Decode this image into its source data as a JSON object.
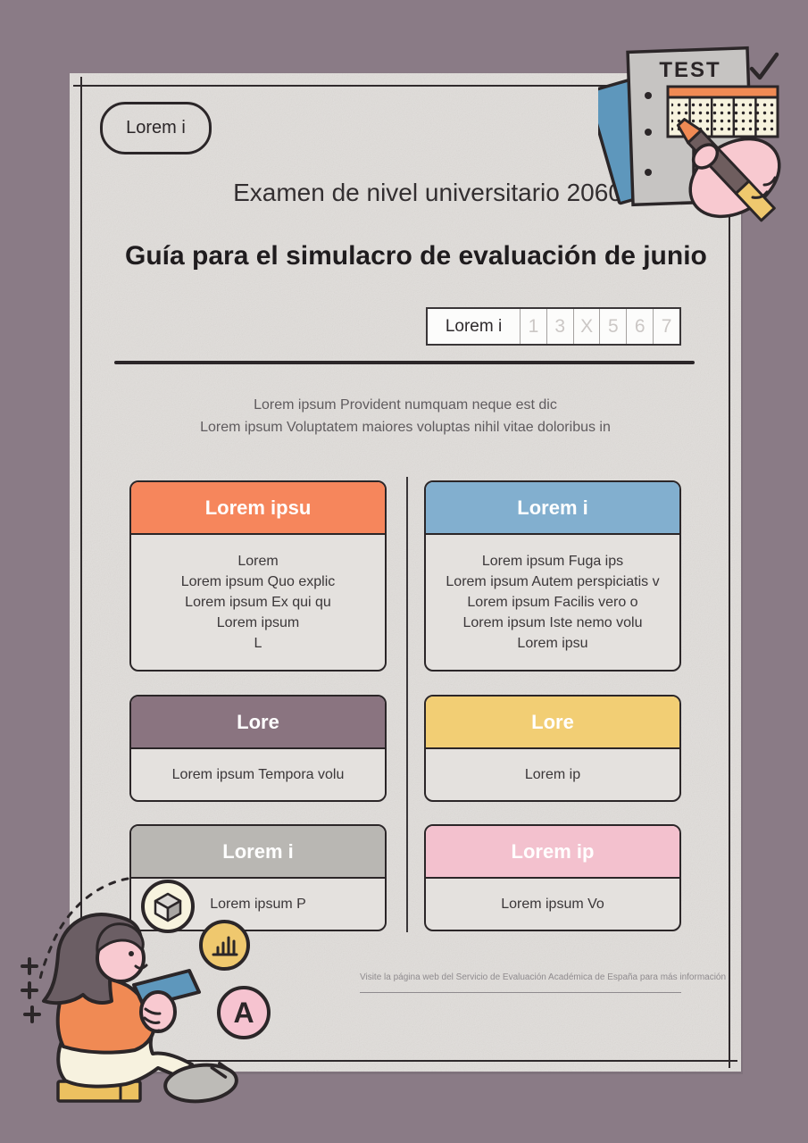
{
  "page": {
    "badge_label": "Lorem i",
    "subtitle": "Examen de nivel universitario 2060",
    "title": "Guía para el simulacro de evaluación de junio",
    "answer_row": {
      "label": "Lorem i",
      "cells": [
        "1",
        "3",
        "X",
        "5",
        "6",
        "7"
      ]
    },
    "intro_lines": [
      "Lorem ipsum Provident numquam neque est dic",
      "Lorem ipsum Voluptatem maiores voluptas nihil vitae doloribus in"
    ],
    "footer_note": "Visite la página web del Servicio de Evaluación Académica de España para más información"
  },
  "cards": [
    {
      "title": "Lorem ipsu",
      "color": "#f6865c",
      "lines": [
        "Lorem",
        "Lorem ipsum Quo explic",
        "Lorem ipsum Ex qui qu",
        "Lorem ipsum",
        "L"
      ]
    },
    {
      "title": "Lorem i",
      "color": "#82afcf",
      "lines": [
        "Lorem ipsum Fuga ips",
        "Lorem ipsum Autem perspiciatis v",
        "Lorem ipsum Facilis vero o",
        "Lorem ipsum Iste nemo volu",
        "Lorem ipsu"
      ]
    },
    {
      "title": "Lore",
      "color": "#8a7480",
      "lines": [
        "Lorem ipsum Tempora volu"
      ]
    },
    {
      "title": "Lore",
      "color": "#f2ce74",
      "lines": [
        "Lorem ip"
      ]
    },
    {
      "title": "Lorem i",
      "color": "#b9b7b3",
      "lines": [
        "Lorem ipsum P"
      ]
    },
    {
      "title": "Lorem ip",
      "color": "#f3c1ce",
      "lines": [
        "Lorem ipsum Vo"
      ]
    }
  ],
  "illustrations": {
    "clipboard_title": "TEST",
    "letter_badge": "A"
  },
  "colors": {
    "background": "#8a7b86",
    "paper": "#e8e5e2",
    "ink": "#2b2628",
    "orange": "#f6865c",
    "blue": "#82afcf",
    "mauve": "#8a7480",
    "yellow": "#f2ce74",
    "gray": "#b9b7b3",
    "pink": "#f3c1ce",
    "cream": "#f7f3de",
    "skin": "#f8c9d0",
    "hair": "#6b5e64",
    "tablet_blue": "#5e97bc",
    "book_yellow": "#ecc160",
    "shoe_gray": "#bdbbb7"
  }
}
